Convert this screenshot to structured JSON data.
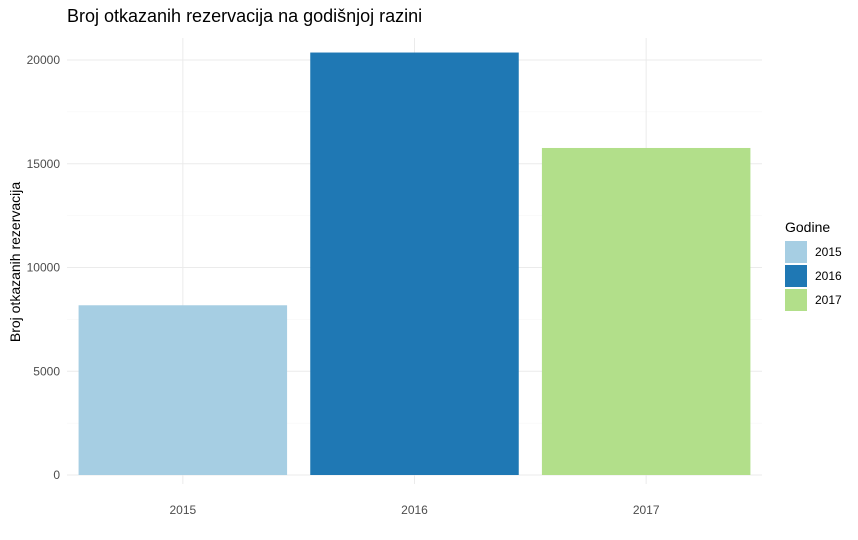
{
  "chart_data": {
    "type": "bar",
    "title": "Broj otkazanih rezervacija na godišnjoj razini",
    "xlabel": "",
    "ylabel": "Broj otkazanih rezervacija",
    "categories": [
      "2015",
      "2016",
      "2017"
    ],
    "values": [
      8180,
      20360,
      15760
    ],
    "colors": [
      "#a6cee3",
      "#1f78b4",
      "#b2df8a"
    ],
    "ylim": [
      0,
      21500
    ],
    "yticks": [
      0,
      5000,
      10000,
      15000,
      20000
    ],
    "grid": true,
    "legend": {
      "title": "Godine",
      "position": "right",
      "entries": [
        "2015",
        "2016",
        "2017"
      ]
    }
  }
}
